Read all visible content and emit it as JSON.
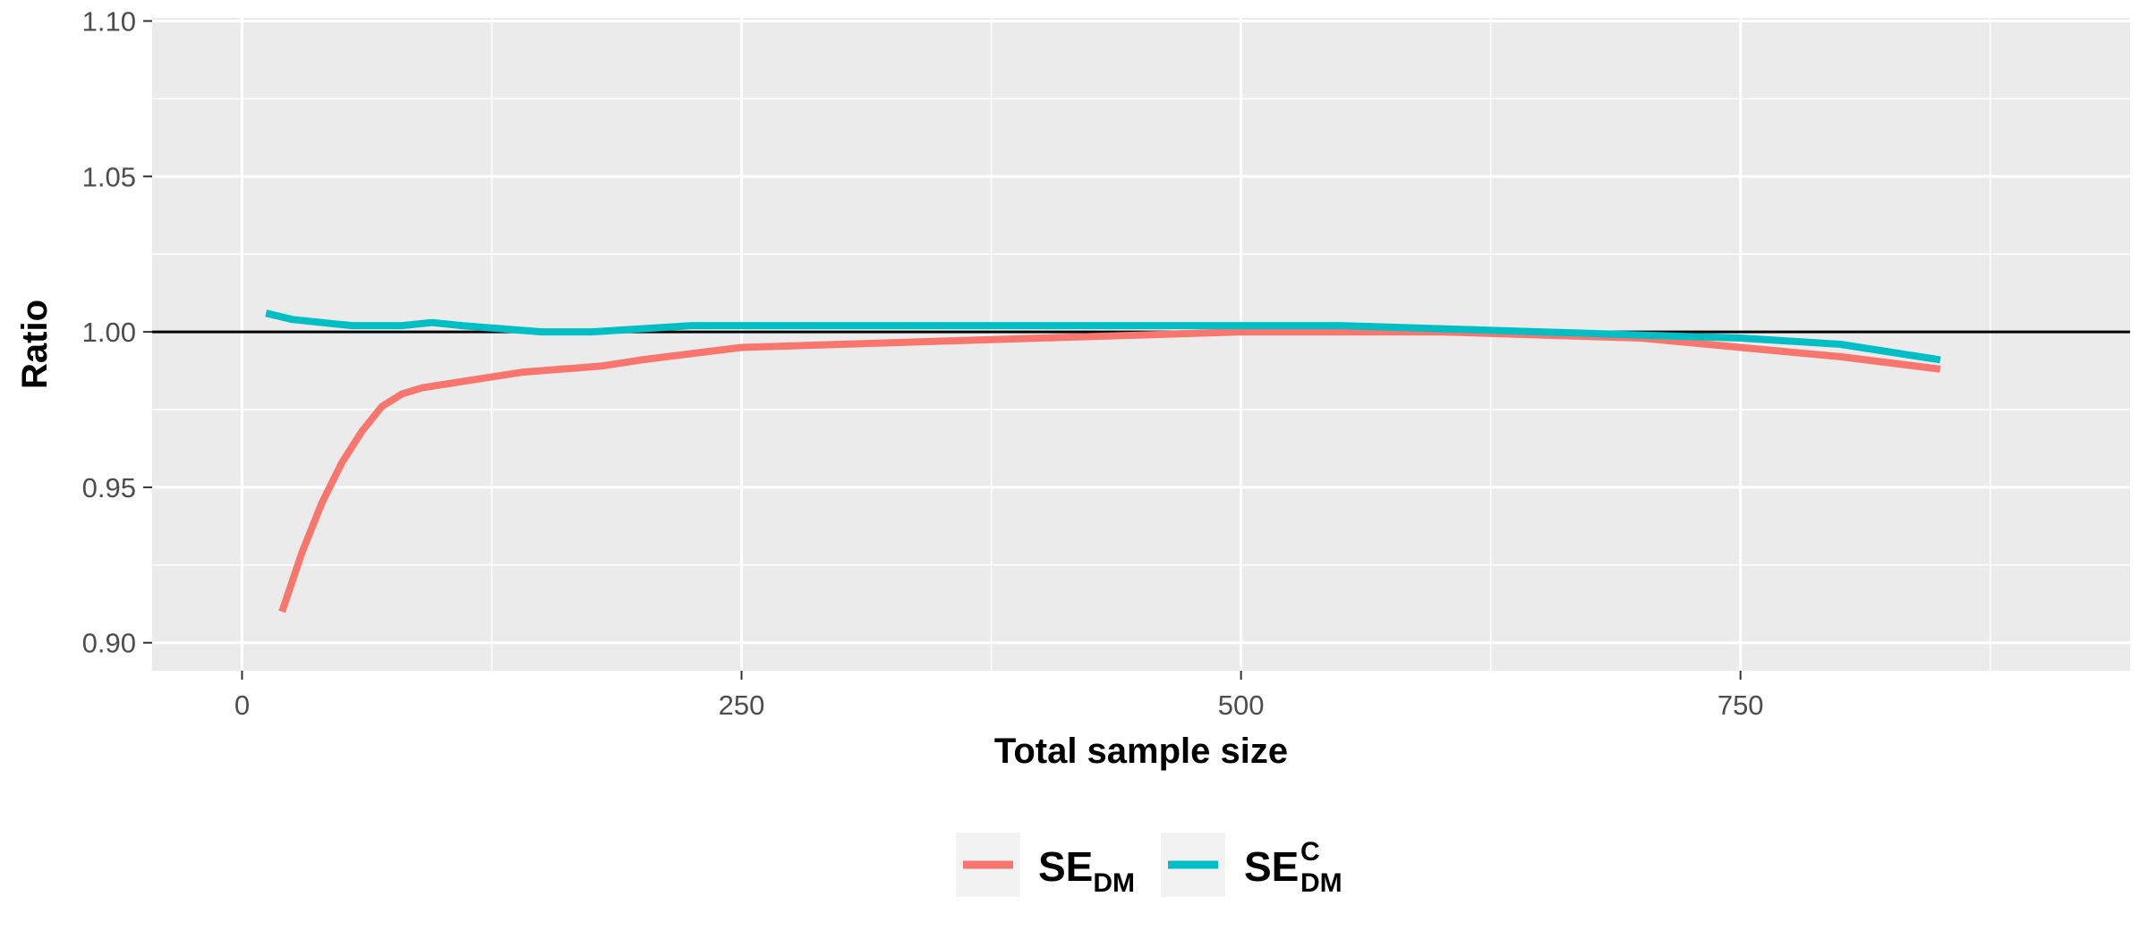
{
  "chart_data": {
    "type": "line",
    "xlabel": "Total sample size",
    "ylabel": "Ratio",
    "xlim": [
      -45,
      945
    ],
    "ylim": [
      0.891,
      1.101
    ],
    "x_ticks": [
      {
        "value": 0,
        "label": "0"
      },
      {
        "value": 250,
        "label": "250"
      },
      {
        "value": 500,
        "label": "500"
      },
      {
        "value": 750,
        "label": "750"
      }
    ],
    "y_ticks": [
      {
        "value": 0.9,
        "label": "0.90"
      },
      {
        "value": 0.95,
        "label": "0.95"
      },
      {
        "value": 1.0,
        "label": "1.00"
      },
      {
        "value": 1.05,
        "label": "1.05"
      },
      {
        "value": 1.1,
        "label": "1.10"
      }
    ],
    "grid": true,
    "reference_line": {
      "y": 1.0,
      "color": "#000000"
    },
    "legend_position": "bottom",
    "series": [
      {
        "name": "SE",
        "subscript": "DM",
        "superscript": "",
        "color": "#F8766D",
        "x": [
          20,
          30,
          40,
          50,
          60,
          70,
          80,
          90,
          100,
          120,
          140,
          160,
          180,
          200,
          225,
          250,
          300,
          350,
          400,
          450,
          500,
          550,
          600,
          650,
          700,
          750,
          800,
          850
        ],
        "y": [
          0.91,
          0.929,
          0.945,
          0.958,
          0.968,
          0.976,
          0.98,
          0.982,
          0.983,
          0.985,
          0.987,
          0.988,
          0.989,
          0.991,
          0.993,
          0.995,
          0.996,
          0.997,
          0.998,
          0.999,
          1.0,
          1.0,
          1.0,
          0.999,
          0.998,
          0.995,
          0.992,
          0.988
        ]
      },
      {
        "name": "SE",
        "subscript": "DM",
        "superscript": "C",
        "color": "#00BFC4",
        "x": [
          12,
          25,
          40,
          55,
          70,
          80,
          95,
          110,
          130,
          150,
          175,
          200,
          225,
          250,
          300,
          350,
          400,
          450,
          500,
          550,
          600,
          650,
          700,
          750,
          800,
          850
        ],
        "y": [
          1.006,
          1.004,
          1.003,
          1.002,
          1.002,
          1.002,
          1.003,
          1.002,
          1.001,
          1.0,
          1.0,
          1.001,
          1.002,
          1.002,
          1.002,
          1.002,
          1.002,
          1.002,
          1.002,
          1.002,
          1.001,
          1.0,
          0.999,
          0.998,
          0.996,
          0.991
        ]
      }
    ]
  }
}
